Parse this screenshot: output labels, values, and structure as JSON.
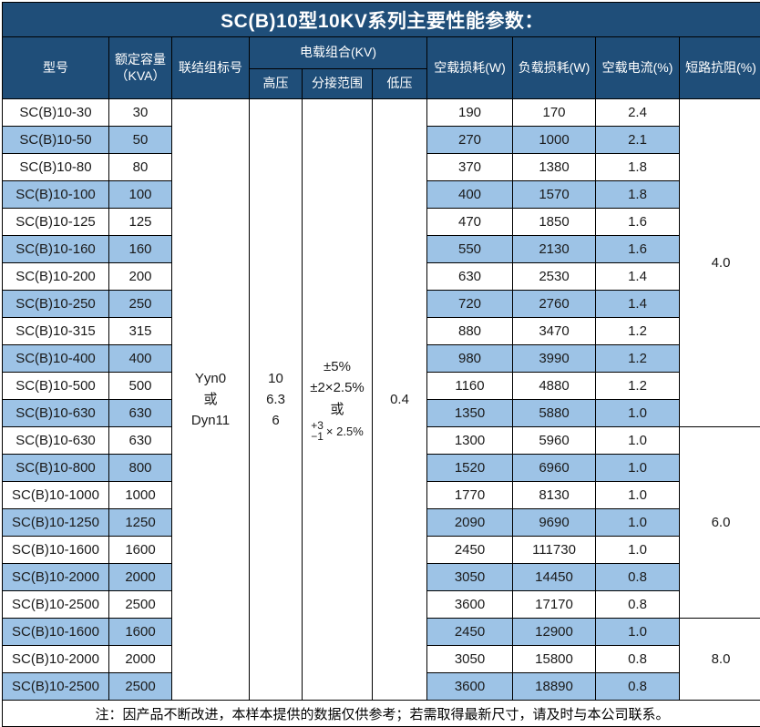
{
  "title": "SC(B)10型10KV系列主要性能参数：",
  "colors": {
    "header_bg": "#1F4E79",
    "header_text": "#FFFFFF",
    "alt_row_bg": "#9DC3E6",
    "row_bg": "#FFFFFF",
    "border": "#000000",
    "text": "#1A1A1A"
  },
  "header": {
    "model": "型号",
    "capacity_line1": "额定容量",
    "capacity_line2": "（KVA）",
    "connection": "联结组标号",
    "voltage_group": "电载组合(KV)",
    "hv": "高压",
    "tap_range": "分接范围",
    "lv": "低压",
    "no_load_loss": "空载损耗(W)",
    "load_loss": "负载损耗(W)",
    "no_load_current": "空载电流(%)",
    "impedance": "短路抗阻(%)"
  },
  "merged": {
    "connection_lines": [
      "Yyn0",
      "或",
      "Dyn11"
    ],
    "hv_lines": [
      "10",
      "6.3",
      "6"
    ],
    "tap_lines": [
      "±5%",
      "±2×2.5%",
      "或"
    ],
    "tap_fraction": {
      "top": "+3",
      "bottom": "−1",
      "suffix": "× 2.5%"
    },
    "lv": "0.4"
  },
  "rows": [
    {
      "model": "SC(B)10-30",
      "kva": "30",
      "no_load": "190",
      "load": "170",
      "current": "2.4"
    },
    {
      "model": "SC(B)10-50",
      "kva": "50",
      "no_load": "270",
      "load": "1000",
      "current": "2.1"
    },
    {
      "model": "SC(B)10-80",
      "kva": "80",
      "no_load": "370",
      "load": "1380",
      "current": "1.8"
    },
    {
      "model": "SC(B)10-100",
      "kva": "100",
      "no_load": "400",
      "load": "1570",
      "current": "1.8"
    },
    {
      "model": "SC(B)10-125",
      "kva": "125",
      "no_load": "470",
      "load": "1850",
      "current": "1.6"
    },
    {
      "model": "SC(B)10-160",
      "kva": "160",
      "no_load": "550",
      "load": "2130",
      "current": "1.6"
    },
    {
      "model": "SC(B)10-200",
      "kva": "200",
      "no_load": "630",
      "load": "2530",
      "current": "1.4"
    },
    {
      "model": "SC(B)10-250",
      "kva": "250",
      "no_load": "720",
      "load": "2760",
      "current": "1.4"
    },
    {
      "model": "SC(B)10-315",
      "kva": "315",
      "no_load": "880",
      "load": "3470",
      "current": "1.2"
    },
    {
      "model": "SC(B)10-400",
      "kva": "400",
      "no_load": "980",
      "load": "3990",
      "current": "1.2"
    },
    {
      "model": "SC(B)10-500",
      "kva": "500",
      "no_load": "1160",
      "load": "4880",
      "current": "1.2"
    },
    {
      "model": "SC(B)10-630",
      "kva": "630",
      "no_load": "1350",
      "load": "5880",
      "current": "1.0"
    },
    {
      "model": "SC(B)10-630",
      "kva": "630",
      "no_load": "1300",
      "load": "5960",
      "current": "1.0"
    },
    {
      "model": "SC(B)10-800",
      "kva": "800",
      "no_load": "1520",
      "load": "6960",
      "current": "1.0"
    },
    {
      "model": "SC(B)10-1000",
      "kva": "1000",
      "no_load": "1770",
      "load": "8130",
      "current": "1.0"
    },
    {
      "model": "SC(B)10-1250",
      "kva": "1250",
      "no_load": "2090",
      "load": "9690",
      "current": "1.0"
    },
    {
      "model": "SC(B)10-1600",
      "kva": "1600",
      "no_load": "2450",
      "load": "111730",
      "current": "1.0"
    },
    {
      "model": "SC(B)10-2000",
      "kva": "2000",
      "no_load": "3050",
      "load": "14450",
      "current": "0.8"
    },
    {
      "model": "SC(B)10-2500",
      "kva": "2500",
      "no_load": "3600",
      "load": "17170",
      "current": "0.8"
    },
    {
      "model": "SC(B)10-1600",
      "kva": "1600",
      "no_load": "2450",
      "load": "12900",
      "current": "1.0"
    },
    {
      "model": "SC(B)10-2000",
      "kva": "2000",
      "no_load": "3050",
      "load": "15800",
      "current": "0.8"
    },
    {
      "model": "SC(B)10-2500",
      "kva": "2500",
      "no_load": "3600",
      "load": "18890",
      "current": "0.8"
    }
  ],
  "impedance_groups": [
    {
      "value": "4.0",
      "start": 0,
      "span": 12
    },
    {
      "value": "6.0",
      "start": 12,
      "span": 7
    },
    {
      "value": "8.0",
      "start": 19,
      "span": 3
    }
  ],
  "footer": "注：因产品不断改进，本样本提供的数据仅供参考；若需取得最新尺寸，请及时与本公司联系。"
}
